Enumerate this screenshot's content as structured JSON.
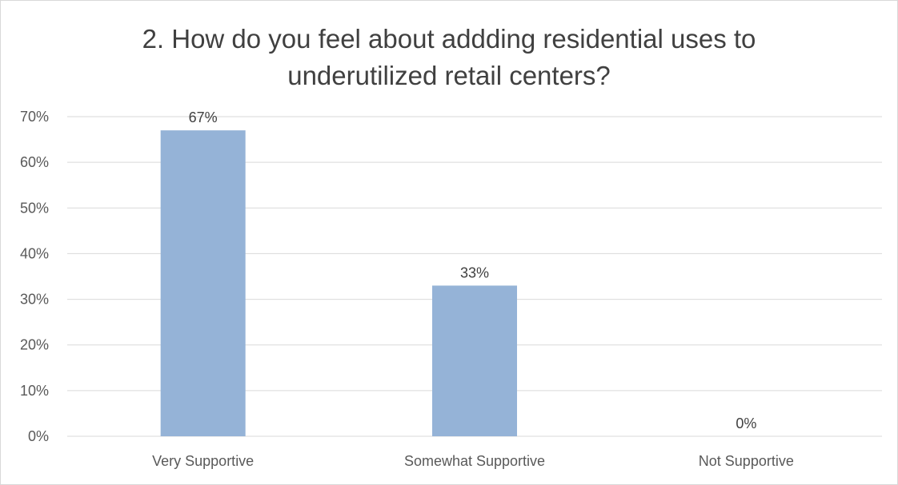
{
  "chart_data": {
    "type": "bar",
    "title_lines": [
      "2. How do you feel about addding residential uses to",
      "underutilized retail centers?"
    ],
    "categories": [
      "Very Supportive",
      "Somewhat Supportive",
      "Not Supportive"
    ],
    "values": [
      0.67,
      0.33,
      0.0
    ],
    "value_labels": [
      "67%",
      "33%",
      "0%"
    ],
    "yticks": [
      "0%",
      "10%",
      "20%",
      "30%",
      "40%",
      "50%",
      "60%",
      "70%"
    ],
    "ylim": [
      0,
      0.7
    ],
    "grid": true,
    "bar_color": "#95b3d7",
    "grid_color": "#d9d9d9"
  }
}
